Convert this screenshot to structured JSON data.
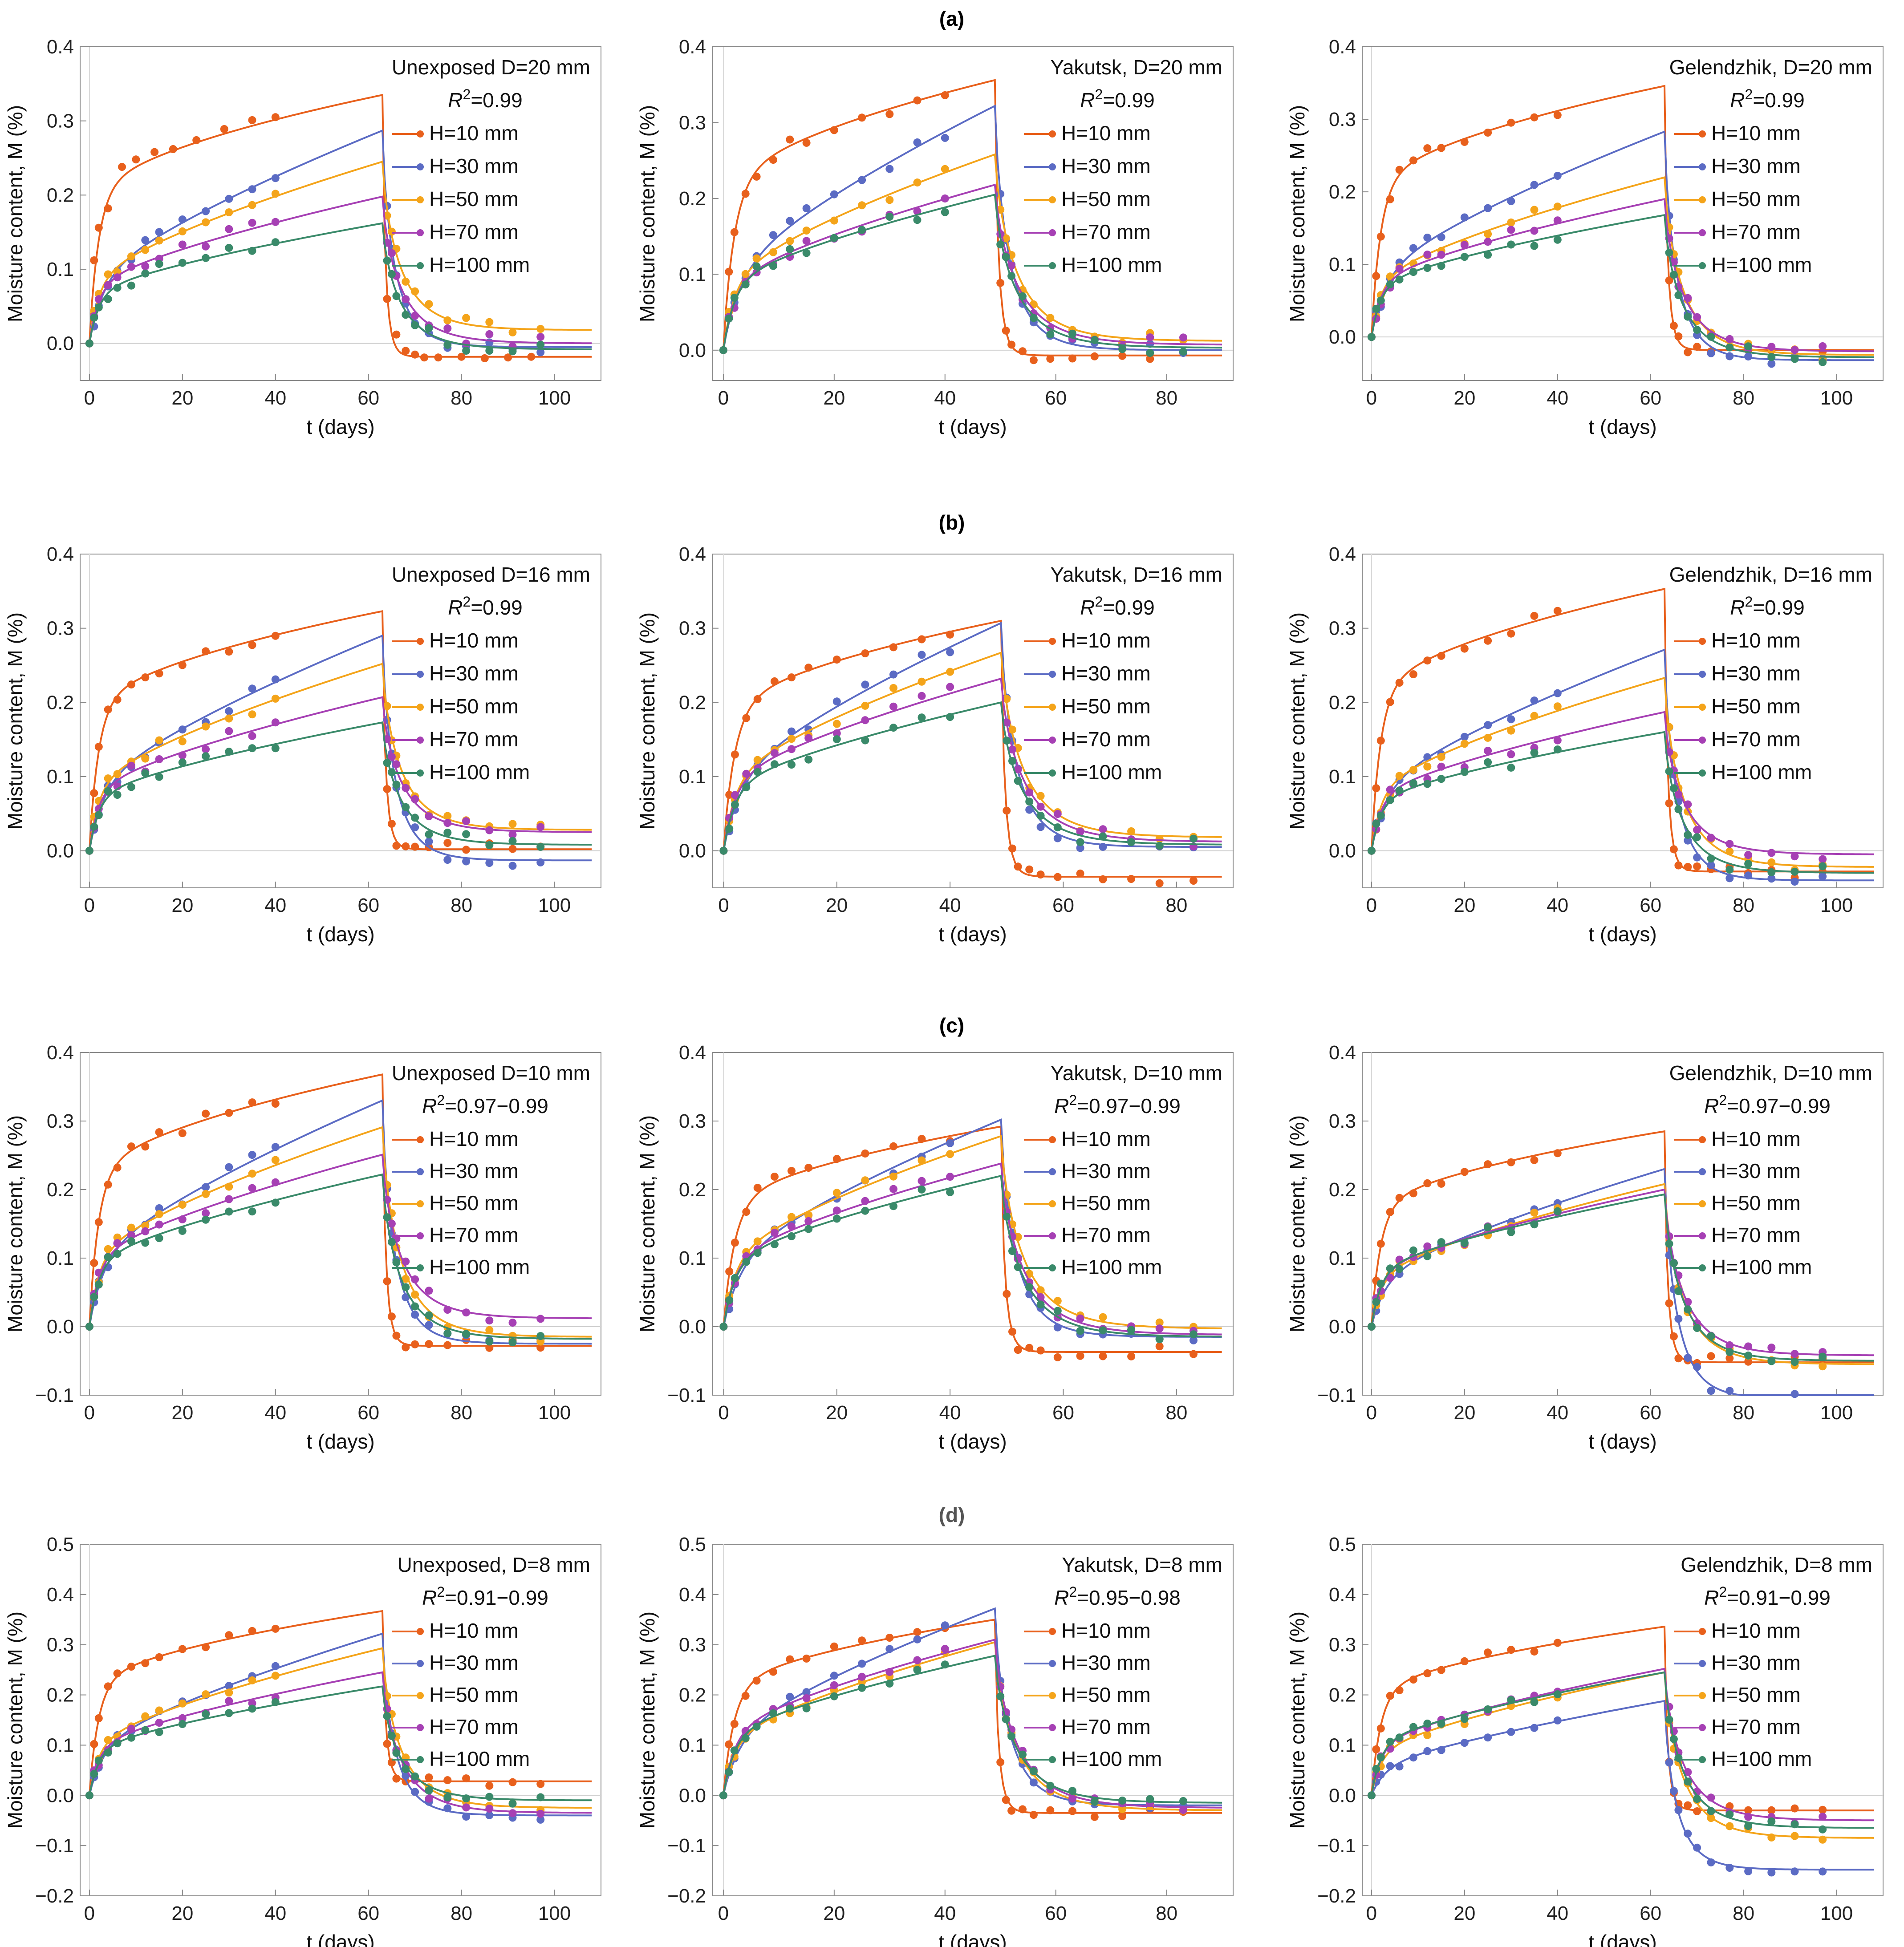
{
  "figure": {
    "row_labels": [
      "(a)",
      "(b)",
      "(c)",
      "(d)"
    ],
    "h_labels": [
      "H=10 mm",
      "H=30 mm",
      "H=50 mm",
      "H=70 mm",
      "H=100 mm"
    ],
    "series_colors": [
      "#e8601c",
      "#5b6bc4",
      "#f4a41a",
      "#a640b4",
      "#3a8a6a"
    ],
    "axis_label_y": "Moisture content, M (%)",
    "axis_label_x": "t (days)"
  },
  "chart_data": [
    {
      "type": "line",
      "row": 0,
      "col": 0,
      "title": "Unexposed D=20 mm",
      "r2": "0.99",
      "t_switch": 63,
      "xlim": [
        -2,
        110
      ],
      "ylim": [
        -0.05,
        0.4
      ],
      "yticks": [
        0.0,
        0.1,
        0.2,
        0.3,
        0.4
      ],
      "xticks": [
        0,
        20,
        40,
        60,
        80,
        100
      ],
      "peak": [
        0.335,
        0.287,
        0.245,
        0.198,
        0.162
      ],
      "final": [
        -0.018,
        -0.005,
        0.018,
        0.0,
        -0.008
      ],
      "series": [
        {
          "name": "H=10 mm",
          "marker_days": [
            0,
            1,
            2,
            4,
            7,
            10,
            14,
            18,
            23,
            29,
            35,
            40,
            64,
            66,
            68,
            70,
            72,
            75,
            80,
            85,
            90,
            95
          ],
          "marker_values": [
            0.0,
            0.112,
            0.156,
            0.182,
            0.238,
            0.248,
            0.258,
            0.262,
            0.274,
            0.289,
            0.301,
            0.305,
            0.06,
            0.012,
            -0.01,
            -0.015,
            -0.019,
            -0.019,
            -0.018,
            -0.02,
            -0.019,
            -0.018
          ]
        }
      ]
    },
    {
      "type": "line",
      "row": 0,
      "col": 1,
      "title": "Yakutsk, D=20 mm",
      "r2": "0.99",
      "t_switch": 49,
      "xlim": [
        -2,
        92
      ],
      "ylim": [
        -0.04,
        0.4
      ],
      "yticks": [
        0.0,
        0.1,
        0.2,
        0.3,
        0.4
      ],
      "xticks": [
        0,
        20,
        40,
        60,
        80
      ],
      "peak": [
        0.356,
        0.322,
        0.258,
        0.218,
        0.205
      ],
      "final": [
        -0.007,
        0.0,
        0.012,
        0.007,
        0.003
      ],
      "series": []
    },
    {
      "type": "line",
      "row": 0,
      "col": 2,
      "title": "Gelendzhik, D=20 mm",
      "r2": "0.99",
      "t_switch": 63,
      "xlim": [
        -2,
        110
      ],
      "ylim": [
        -0.06,
        0.4
      ],
      "yticks": [
        0.0,
        0.1,
        0.2,
        0.3,
        0.4
      ],
      "xticks": [
        0,
        20,
        40,
        60,
        80,
        100
      ],
      "peak": [
        0.346,
        0.283,
        0.22,
        0.19,
        0.168
      ],
      "final": [
        -0.018,
        -0.032,
        -0.025,
        -0.02,
        -0.028
      ],
      "series": []
    },
    {
      "type": "line",
      "row": 1,
      "col": 0,
      "title": "Unexposed D=16 mm",
      "r2": "0.99",
      "t_switch": 63,
      "xlim": [
        -2,
        110
      ],
      "ylim": [
        -0.05,
        0.4
      ],
      "yticks": [
        0.0,
        0.1,
        0.2,
        0.3,
        0.4
      ],
      "xticks": [
        0,
        20,
        40,
        60,
        80,
        100
      ],
      "peak": [
        0.323,
        0.29,
        0.252,
        0.207,
        0.173
      ],
      "final": [
        0.002,
        -0.013,
        0.028,
        0.025,
        0.008
      ],
      "series": []
    },
    {
      "type": "line",
      "row": 1,
      "col": 1,
      "title": "Yakutsk, D=16 mm",
      "r2": "0.99",
      "t_switch": 49,
      "xlim": [
        -2,
        90
      ],
      "ylim": [
        -0.05,
        0.4
      ],
      "yticks": [
        0.0,
        0.1,
        0.2,
        0.3,
        0.4
      ],
      "xticks": [
        0,
        20,
        40,
        60,
        80
      ],
      "peak": [
        0.31,
        0.307,
        0.267,
        0.232,
        0.2
      ],
      "final": [
        -0.035,
        0.005,
        0.018,
        0.012,
        0.008
      ],
      "series": []
    },
    {
      "type": "line",
      "row": 1,
      "col": 2,
      "title": "Gelendzhik, D=16 mm",
      "r2": "0.99",
      "t_switch": 63,
      "xlim": [
        -2,
        110
      ],
      "ylim": [
        -0.05,
        0.4
      ],
      "yticks": [
        0.0,
        0.1,
        0.2,
        0.3,
        0.4
      ],
      "xticks": [
        0,
        20,
        40,
        60,
        80,
        100
      ],
      "peak": [
        0.353,
        0.271,
        0.233,
        0.187,
        0.16
      ],
      "final": [
        -0.028,
        -0.04,
        -0.022,
        -0.005,
        -0.03
      ],
      "series": []
    },
    {
      "type": "line",
      "row": 2,
      "col": 0,
      "title": "Unexposed D=10 mm",
      "r2": "0.97−0.99",
      "t_switch": 63,
      "xlim": [
        -2,
        110
      ],
      "ylim": [
        -0.1,
        0.4
      ],
      "yticks": [
        -0.1,
        0.0,
        0.1,
        0.2,
        0.3,
        0.4
      ],
      "xticks": [
        0,
        20,
        40,
        60,
        80,
        100
      ],
      "peak": [
        0.368,
        0.33,
        0.291,
        0.251,
        0.222
      ],
      "final": [
        -0.028,
        -0.025,
        -0.015,
        0.012,
        -0.018
      ],
      "series": []
    },
    {
      "type": "line",
      "row": 2,
      "col": 1,
      "title": "Yakutsk, D=10 mm",
      "r2": "0.97−0.99",
      "t_switch": 49,
      "xlim": [
        -2,
        90
      ],
      "ylim": [
        -0.1,
        0.4
      ],
      "yticks": [
        -0.1,
        0.0,
        0.1,
        0.2,
        0.3,
        0.4
      ],
      "xticks": [
        0,
        20,
        40,
        60,
        80
      ],
      "peak": [
        0.292,
        0.302,
        0.278,
        0.238,
        0.22
      ],
      "final": [
        -0.037,
        -0.015,
        -0.003,
        -0.012,
        -0.015
      ],
      "series": []
    },
    {
      "type": "line",
      "row": 2,
      "col": 2,
      "title": "Gelendzhik, D=10 mm",
      "r2": "0.97−0.99",
      "t_switch": 63,
      "xlim": [
        -2,
        110
      ],
      "ylim": [
        -0.1,
        0.4
      ],
      "yticks": [
        -0.1,
        0.0,
        0.1,
        0.2,
        0.3,
        0.4
      ],
      "xticks": [
        0,
        20,
        40,
        60,
        80,
        100
      ],
      "peak": [
        0.285,
        0.23,
        0.208,
        0.2,
        0.193
      ],
      "final": [
        -0.052,
        -0.105,
        -0.055,
        -0.042,
        -0.05
      ],
      "series": []
    },
    {
      "type": "line",
      "row": 3,
      "col": 0,
      "title": "Unexposed, D=8 mm",
      "r2": "0.91−0.99",
      "t_switch": 63,
      "xlim": [
        -2,
        110
      ],
      "ylim": [
        -0.2,
        0.5
      ],
      "yticks": [
        -0.2,
        -0.1,
        0.0,
        0.1,
        0.2,
        0.3,
        0.4,
        0.5
      ],
      "xticks": [
        0,
        20,
        40,
        60,
        80,
        100
      ],
      "peak": [
        0.367,
        0.322,
        0.293,
        0.245,
        0.217
      ],
      "final": [
        0.028,
        -0.04,
        -0.025,
        -0.035,
        -0.01
      ],
      "series": []
    },
    {
      "type": "line",
      "row": 3,
      "col": 1,
      "title": "Yakutsk, D=8 mm",
      "r2": "0.95−0.98",
      "t_switch": 49,
      "xlim": [
        -2,
        92
      ],
      "ylim": [
        -0.2,
        0.5
      ],
      "yticks": [
        -0.2,
        -0.1,
        0.0,
        0.1,
        0.2,
        0.3,
        0.4,
        0.5
      ],
      "xticks": [
        0,
        20,
        40,
        60,
        80
      ],
      "peak": [
        0.35,
        0.372,
        0.305,
        0.31,
        0.278
      ],
      "final": [
        -0.035,
        -0.02,
        -0.03,
        -0.025,
        -0.015
      ],
      "series": []
    },
    {
      "type": "line",
      "row": 3,
      "col": 2,
      "title": "Gelendzhik, D=8 mm",
      "r2": "0.91−0.99",
      "t_switch": 63,
      "xlim": [
        -2,
        110
      ],
      "ylim": [
        -0.2,
        0.5
      ],
      "yticks": [
        -0.2,
        -0.1,
        0.0,
        0.1,
        0.2,
        0.3,
        0.4,
        0.5
      ],
      "xticks": [
        0,
        20,
        40,
        60,
        80,
        100
      ],
      "peak": [
        0.336,
        0.188,
        0.245,
        0.252,
        0.245
      ],
      "final": [
        -0.03,
        -0.148,
        -0.085,
        -0.05,
        -0.065
      ],
      "series": []
    }
  ]
}
